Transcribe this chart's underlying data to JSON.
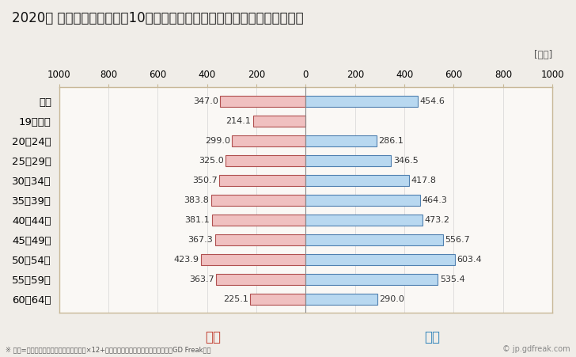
{
  "title": "2020年 民間企業（従業者数10人以上）フルタイム労働者の男女別平均年収",
  "subtitle": "※ 年収=「きまって支給する現金給与額」×12+「年間賞与その他特別給与額」としてGD Freak推計",
  "ylabel_unit": "[万円]",
  "female_label": "女性",
  "male_label": "男性",
  "categories": [
    "全体",
    "19歳以下",
    "20〜24歳",
    "25〜29歳",
    "30〜34歳",
    "35〜39歳",
    "40〜44歳",
    "45〜49歳",
    "50〜54歳",
    "55〜59歳",
    "60〜64歳"
  ],
  "female_values": [
    347.0,
    214.1,
    299.0,
    325.0,
    350.7,
    383.8,
    381.1,
    367.3,
    423.9,
    363.7,
    225.1
  ],
  "male_values": [
    454.6,
    0,
    286.1,
    346.5,
    417.8,
    464.3,
    473.2,
    556.7,
    603.4,
    535.4,
    290.0
  ],
  "female_fill_color": "#f0c0c0",
  "female_edge_color": "#b05050",
  "male_fill_color": "#b8d8f0",
  "male_edge_color": "#5080b0",
  "female_text_color": "#c0392b",
  "male_text_color": "#2980b9",
  "border_color": "#c8b898",
  "background_color": "#f0ede8",
  "plot_bg_color": "#faf8f5",
  "xlim": 1000,
  "bar_height": 0.55,
  "watermark": "© jp.gdfreak.com",
  "title_fontsize": 12,
  "tick_fontsize": 8.5,
  "label_fontsize": 9.5,
  "annotation_fontsize": 8,
  "legend_fontsize": 12
}
